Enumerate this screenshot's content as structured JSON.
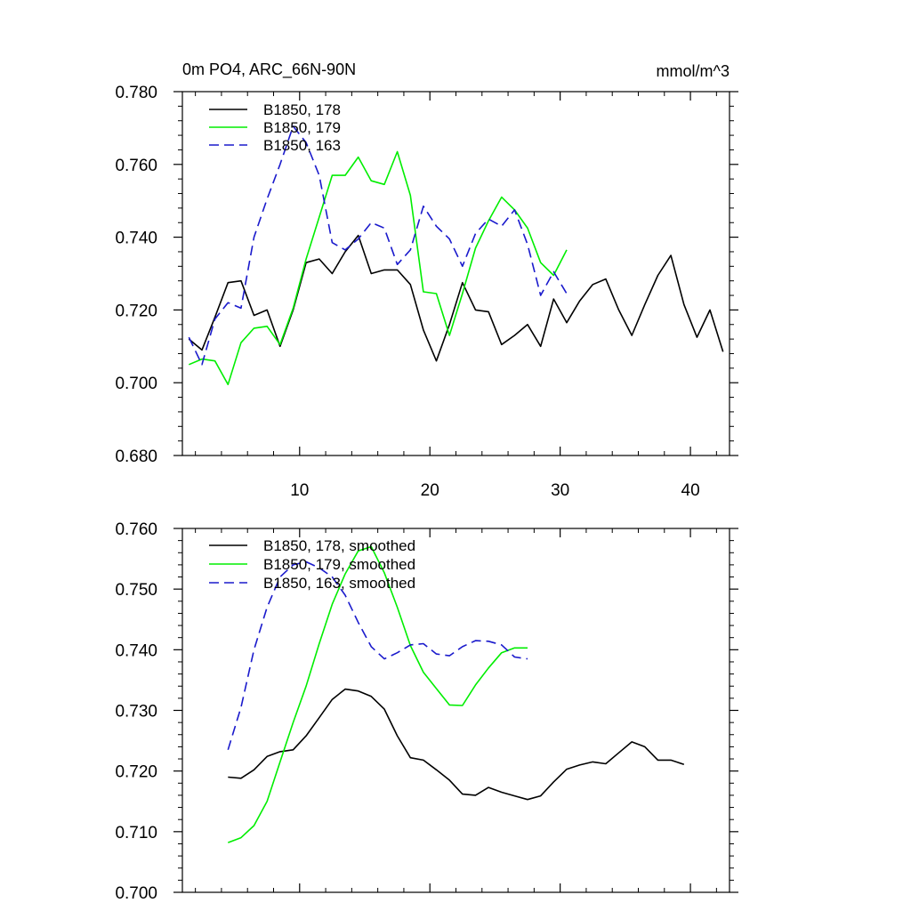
{
  "chart_data": [
    {
      "type": "line",
      "title": "0m PO4, ARC_66N-90N",
      "units": "mmol/m^3",
      "xlim": [
        1,
        43
      ],
      "ylim": [
        0.68,
        0.78
      ],
      "x_ticks": [
        10,
        20,
        30,
        40
      ],
      "y_ticks": [
        0.68,
        0.7,
        0.72,
        0.74,
        0.76,
        0.78
      ],
      "y_tick_labels": [
        "0.680",
        "0.700",
        "0.720",
        "0.740",
        "0.760",
        "0.780"
      ],
      "legend_position": "top-left",
      "series": [
        {
          "name": "B1850, 178",
          "color": "#000000",
          "dash": "solid",
          "x": [
            1.5,
            2.5,
            3.5,
            4.5,
            5.5,
            6.5,
            7.5,
            8.5,
            9.5,
            10.5,
            11.5,
            12.5,
            13.5,
            14.5,
            15.5,
            16.5,
            17.5,
            18.5,
            19.5,
            20.5,
            21.5,
            22.5,
            23.5,
            24.5,
            25.5,
            26.5,
            27.5,
            28.5,
            29.5,
            30.5,
            31.5,
            32.5,
            33.5,
            34.5,
            35.5,
            36.5,
            37.5,
            38.5,
            39.5,
            40.5,
            41.5,
            42.5
          ],
          "values": [
            0.712,
            0.709,
            0.718,
            0.7275,
            0.728,
            0.7185,
            0.72,
            0.71,
            0.72,
            0.733,
            0.734,
            0.73,
            0.736,
            0.7405,
            0.73,
            0.731,
            0.731,
            0.727,
            0.7145,
            0.706,
            0.716,
            0.7275,
            0.72,
            0.7195,
            0.7105,
            0.713,
            0.716,
            0.71,
            0.723,
            0.7165,
            0.7225,
            0.727,
            0.7285,
            0.72,
            0.713,
            0.7215,
            0.7295,
            0.735,
            0.7215,
            0.7125,
            0.72,
            0.7085
          ]
        },
        {
          "name": "B1850, 179",
          "color": "#00ee00",
          "dash": "solid",
          "x": [
            1.5,
            2.5,
            3.5,
            4.5,
            5.5,
            6.5,
            7.5,
            8.5,
            9.5,
            10.5,
            11.5,
            12.5,
            13.5,
            14.5,
            15.5,
            16.5,
            17.5,
            18.5,
            19.5,
            20.5,
            21.5,
            22.5,
            23.5,
            24.5,
            25.5,
            26.5,
            27.5,
            28.5,
            29.5,
            30.5
          ],
          "values": [
            0.705,
            0.7065,
            0.706,
            0.6995,
            0.711,
            0.715,
            0.7155,
            0.7105,
            0.7205,
            0.734,
            0.7455,
            0.757,
            0.757,
            0.762,
            0.7555,
            0.7545,
            0.7635,
            0.7515,
            0.725,
            0.7245,
            0.713,
            0.7245,
            0.737,
            0.7445,
            0.751,
            0.7475,
            0.7425,
            0.733,
            0.7295,
            0.7365
          ]
        },
        {
          "name": "B1850, 163",
          "color": "#1a1acc",
          "dash": "dashed",
          "x": [
            1.5,
            2.5,
            3.5,
            4.5,
            5.5,
            6.5,
            7.5,
            8.5,
            9.5,
            10.5,
            11.5,
            12.5,
            13.5,
            14.5,
            15.5,
            16.5,
            17.5,
            18.5,
            19.5,
            20.5,
            21.5,
            22.5,
            23.5,
            24.5,
            25.5,
            26.5,
            27.5,
            28.5,
            29.5,
            30.5
          ],
          "values": [
            0.7125,
            0.705,
            0.7175,
            0.722,
            0.7205,
            0.74,
            0.7505,
            0.76,
            0.7705,
            0.766,
            0.757,
            0.7385,
            0.7365,
            0.7395,
            0.744,
            0.7425,
            0.7325,
            0.7365,
            0.7485,
            0.743,
            0.7395,
            0.732,
            0.741,
            0.745,
            0.743,
            0.7475,
            0.738,
            0.724,
            0.7305,
            0.7245
          ]
        }
      ]
    },
    {
      "type": "line",
      "xlim": [
        1,
        43
      ],
      "ylim": [
        0.7,
        0.76
      ],
      "x_ticks": [
        10,
        20,
        30,
        40
      ],
      "y_ticks": [
        0.7,
        0.71,
        0.72,
        0.73,
        0.74,
        0.75,
        0.76
      ],
      "y_tick_labels": [
        "0.700",
        "0.710",
        "0.720",
        "0.730",
        "0.740",
        "0.750",
        "0.760"
      ],
      "legend_position": "top-left",
      "series": [
        {
          "name": "B1850, 178, smoothed",
          "color": "#000000",
          "dash": "solid",
          "x": [
            4.5,
            5.5,
            6.5,
            7.5,
            8.5,
            9.5,
            10.5,
            11.5,
            12.5,
            13.5,
            14.5,
            15.5,
            16.5,
            17.5,
            18.5,
            19.5,
            20.5,
            21.5,
            22.5,
            23.5,
            24.5,
            25.5,
            26.5,
            27.5,
            28.5,
            29.5,
            30.5,
            31.5,
            32.5,
            33.5,
            34.5,
            35.5,
            36.5,
            37.5,
            38.5,
            39.5
          ],
          "values": [
            0.719,
            0.7188,
            0.7202,
            0.7224,
            0.7232,
            0.7235,
            0.7258,
            0.7288,
            0.7318,
            0.7335,
            0.7332,
            0.7323,
            0.7302,
            0.7258,
            0.7222,
            0.7218,
            0.7202,
            0.7185,
            0.7162,
            0.716,
            0.7173,
            0.7165,
            0.7159,
            0.7153,
            0.7159,
            0.7182,
            0.7203,
            0.721,
            0.7215,
            0.7212,
            0.723,
            0.7248,
            0.724,
            0.7218,
            0.7218,
            0.7211
          ]
        },
        {
          "name": "B1850, 179, smoothed",
          "color": "#00ee00",
          "dash": "solid",
          "x": [
            4.5,
            5.5,
            6.5,
            7.5,
            8.5,
            9.5,
            10.5,
            11.5,
            12.5,
            13.5,
            14.5,
            15.5,
            16.5,
            17.5,
            18.5,
            19.5,
            20.5,
            21.5,
            22.5,
            23.5,
            24.5,
            25.5,
            26.5,
            27.5
          ],
          "values": [
            0.7082,
            0.709,
            0.711,
            0.715,
            0.7215,
            0.728,
            0.734,
            0.741,
            0.7475,
            0.7525,
            0.7563,
            0.757,
            0.7527,
            0.747,
            0.7407,
            0.7363,
            0.7336,
            0.7309,
            0.7308,
            0.7342,
            0.737,
            0.7395,
            0.7403,
            0.7403
          ]
        },
        {
          "name": "B1850, 163, smoothed",
          "color": "#1a1acc",
          "dash": "dashed",
          "x": [
            4.5,
            5.5,
            6.5,
            7.5,
            8.5,
            9.5,
            10.5,
            11.5,
            12.5,
            13.5,
            14.5,
            15.5,
            16.5,
            17.5,
            18.5,
            19.5,
            20.5,
            21.5,
            22.5,
            23.5,
            24.5,
            25.5,
            26.5,
            27.5
          ],
          "values": [
            0.7235,
            0.7305,
            0.74,
            0.747,
            0.752,
            0.754,
            0.7545,
            0.7535,
            0.752,
            0.749,
            0.7445,
            0.7405,
            0.7385,
            0.7395,
            0.7408,
            0.741,
            0.7393,
            0.739,
            0.7405,
            0.7415,
            0.7414,
            0.7408,
            0.7388,
            0.7385
          ]
        }
      ]
    }
  ]
}
